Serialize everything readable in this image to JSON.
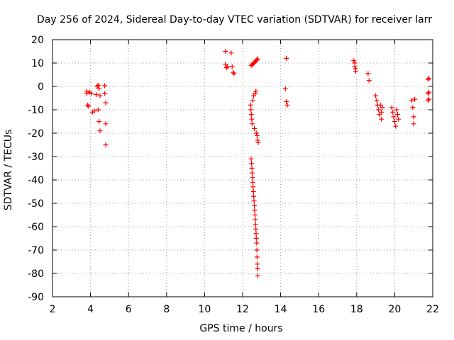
{
  "chart_data": {
    "type": "scatter",
    "title": "Day 256 of 2024, Sidereal Day-to-day VTEC variation (SDTVAR) for receiver larr",
    "xlabel": "GPS time / hours",
    "ylabel": "SDTVAR / TECUs",
    "xlim": [
      2,
      22
    ],
    "ylim": [
      -90,
      20
    ],
    "xticks": [
      2,
      4,
      6,
      8,
      10,
      12,
      14,
      16,
      18,
      20,
      22
    ],
    "yticks": [
      20,
      10,
      0,
      -10,
      -20,
      -30,
      -40,
      -50,
      -60,
      -70,
      -80,
      -90
    ],
    "grid": true,
    "marker": "+",
    "color": "#ff0000",
    "series": [
      {
        "name": "SDTVAR",
        "points": [
          [
            3.8,
            -2
          ],
          [
            3.8,
            -3
          ],
          [
            3.85,
            -8
          ],
          [
            3.9,
            -8.5
          ],
          [
            3.95,
            -2.5
          ],
          [
            4.05,
            -3
          ],
          [
            4.1,
            -11
          ],
          [
            4.2,
            -10.5
          ],
          [
            4.3,
            -3.5
          ],
          [
            4.35,
            0
          ],
          [
            4.4,
            0.5
          ],
          [
            4.45,
            -1
          ],
          [
            4.5,
            -4
          ],
          [
            4.4,
            -10
          ],
          [
            4.45,
            -15
          ],
          [
            4.5,
            -19
          ],
          [
            4.75,
            0.3
          ],
          [
            4.75,
            -3
          ],
          [
            4.8,
            -7
          ],
          [
            4.8,
            -16
          ],
          [
            4.8,
            -25
          ],
          [
            11.1,
            15
          ],
          [
            11.1,
            9.5
          ],
          [
            11.15,
            8
          ],
          [
            11.2,
            8.5
          ],
          [
            11.4,
            14.3
          ],
          [
            11.45,
            8.5
          ],
          [
            11.5,
            6
          ],
          [
            11.55,
            5.5
          ],
          [
            12.45,
            9
          ],
          [
            12.5,
            9.3
          ],
          [
            12.55,
            9.7
          ],
          [
            12.6,
            10
          ],
          [
            12.65,
            10.5
          ],
          [
            12.7,
            11
          ],
          [
            12.75,
            11.3
          ],
          [
            12.8,
            11.8
          ],
          [
            12.42,
            -8
          ],
          [
            12.44,
            -10
          ],
          [
            12.46,
            -12
          ],
          [
            12.48,
            -14
          ],
          [
            12.5,
            -16
          ],
          [
            12.54,
            -6
          ],
          [
            12.58,
            -4
          ],
          [
            12.62,
            -18
          ],
          [
            12.66,
            -3
          ],
          [
            12.7,
            -2
          ],
          [
            12.72,
            -20
          ],
          [
            12.76,
            -21
          ],
          [
            12.8,
            -23
          ],
          [
            12.82,
            -24
          ],
          [
            12.45,
            -31
          ],
          [
            12.47,
            -33
          ],
          [
            12.49,
            -35
          ],
          [
            12.5,
            -37
          ],
          [
            12.52,
            -39
          ],
          [
            12.54,
            -41
          ],
          [
            12.55,
            -43
          ],
          [
            12.57,
            -45
          ],
          [
            12.58,
            -47
          ],
          [
            12.6,
            -49
          ],
          [
            12.62,
            -51
          ],
          [
            12.63,
            -53
          ],
          [
            12.65,
            -55
          ],
          [
            12.67,
            -57
          ],
          [
            12.68,
            -59
          ],
          [
            12.7,
            -61
          ],
          [
            12.71,
            -63
          ],
          [
            12.72,
            -65
          ],
          [
            12.74,
            -67
          ],
          [
            12.75,
            -70
          ],
          [
            12.76,
            -73
          ],
          [
            12.78,
            -76
          ],
          [
            12.8,
            -78
          ],
          [
            12.8,
            -81
          ],
          [
            14.3,
            12
          ],
          [
            14.25,
            -1
          ],
          [
            14.3,
            -6.5
          ],
          [
            14.35,
            -8
          ],
          [
            17.85,
            11
          ],
          [
            17.9,
            10
          ],
          [
            17.9,
            8.5
          ],
          [
            17.95,
            7.5
          ],
          [
            17.95,
            6.5
          ],
          [
            18.6,
            5.5
          ],
          [
            18.65,
            2.5
          ],
          [
            19.0,
            -4
          ],
          [
            19.05,
            -6
          ],
          [
            19.1,
            -8
          ],
          [
            19.15,
            -10
          ],
          [
            19.2,
            -12
          ],
          [
            19.25,
            -8
          ],
          [
            19.3,
            -11
          ],
          [
            19.35,
            -9
          ],
          [
            19.3,
            -14
          ],
          [
            19.85,
            -9
          ],
          [
            19.9,
            -11
          ],
          [
            19.95,
            -13
          ],
          [
            20.0,
            -15
          ],
          [
            20.05,
            -17
          ],
          [
            20.1,
            -10
          ],
          [
            20.15,
            -12
          ],
          [
            20.2,
            -14
          ],
          [
            20.9,
            -6
          ],
          [
            20.95,
            -9
          ],
          [
            21.0,
            -13
          ],
          [
            21.0,
            -16
          ],
          [
            21.05,
            -5.5
          ],
          [
            21.75,
            3
          ],
          [
            21.8,
            3.5
          ],
          [
            21.75,
            -3
          ],
          [
            21.8,
            -2.5
          ],
          [
            21.75,
            -6
          ],
          [
            21.8,
            -5.5
          ]
        ]
      }
    ]
  }
}
